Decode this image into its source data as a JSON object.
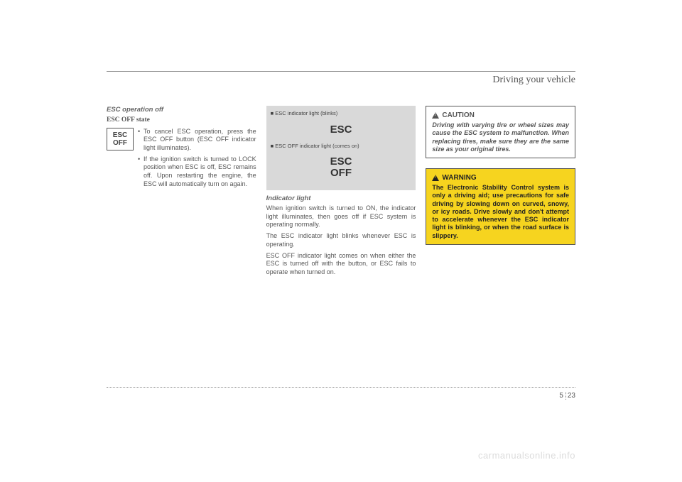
{
  "header": {
    "section_title": "Driving your vehicle"
  },
  "col1": {
    "heading_italic": "ESC operation off",
    "heading_serif": "ESC OFF state",
    "badge_line1": "ESC",
    "badge_line2": "OFF",
    "bullets": [
      "To cancel ESC operation, press the ESC OFF button (ESC OFF indicator light illuminates).",
      "If the ignition switch is turned to LOCK position when ESC is off, ESC remains off. Upon restarting the engine, the ESC will automatically turn on again."
    ]
  },
  "col2": {
    "panel1_label": "■ ESC indicator light (blinks)",
    "panel1_text": "ESC",
    "panel2_label": "■ ESC OFF indicator light (comes on)",
    "panel2_text_l1": "ESC",
    "panel2_text_l2": "OFF",
    "heading": "Indicator light",
    "p1": "When ignition switch is turned to ON, the indicator light illuminates, then goes off if ESC system is operating normally.",
    "p2": "The ESC indicator light blinks whenever ESC is operating.",
    "p3": "ESC OFF indicator light comes on when either the ESC is turned off with the button, or ESC fails to operate when turned on."
  },
  "col3": {
    "caution_title": "CAUTION",
    "caution_body": "Driving with varying tire or wheel sizes may cause the ESC system to malfunction. When replacing tires, make sure they are the same size as your original tires.",
    "warning_title": "WARNING",
    "warning_body": "The Electronic Stability Control system is only a driving aid; use precautions for safe driving by slowing down on curved, snowy, or icy roads. Drive slowly and don't attempt to accelerate whenever the ESC indicator light is blinking, or when the road surface is slippery."
  },
  "footer": {
    "chapter": "5",
    "page": "23",
    "watermark": "carmanualsonline.info"
  },
  "colors": {
    "page_bg": "#ffffff",
    "text": "#555555",
    "panel_bg": "#d9d9d9",
    "warning_bg": "#f6d41f",
    "border": "#555555",
    "watermark": "#dcdcdc"
  }
}
